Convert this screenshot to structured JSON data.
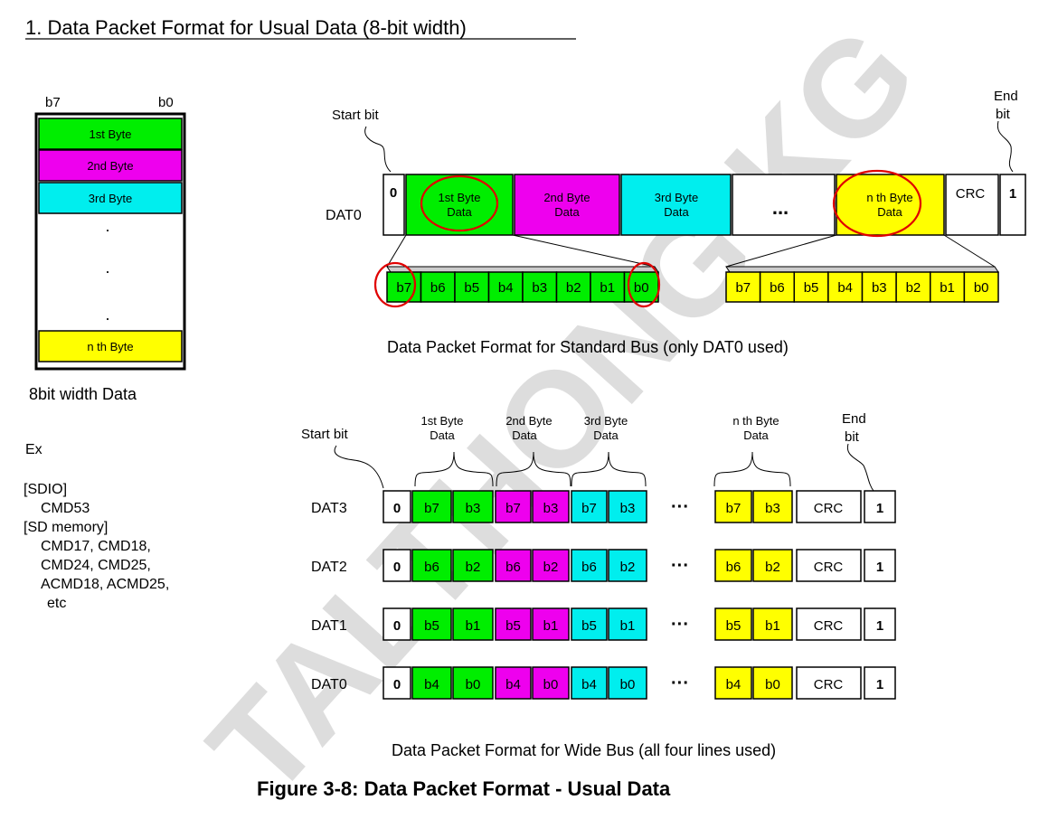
{
  "section_title": "1. Data Packet Format for Usual Data (8-bit width)",
  "watermark": "TALTHONG KG",
  "colors": {
    "green": "#00ee00",
    "magenta": "#ee00ee",
    "cyan": "#00eeee",
    "yellow": "#ffff00",
    "red": "#e00000"
  },
  "byte_stack": {
    "msb_label": "b7",
    "lsb_label": "b0",
    "bytes": [
      "1st Byte",
      "2nd Byte",
      "3rd Byte",
      "n th Byte"
    ],
    "dots": [
      ".",
      ".",
      "."
    ],
    "caption": "8bit width Data"
  },
  "examples": {
    "heading": "Ex",
    "lines": [
      "[SDIO]",
      "CMD53",
      "[SD memory]",
      "CMD17, CMD18,",
      "CMD24, CMD25,",
      "ACMD18, ACMD25,",
      "etc"
    ]
  },
  "standard_bus": {
    "start_label": "Start bit",
    "end_label": [
      "End",
      "bit"
    ],
    "line_label": "DAT0",
    "start_value": "0",
    "end_value": "1",
    "crc_label": "CRC",
    "ellipsis": "...",
    "fields": [
      {
        "label": [
          "1st Byte",
          "Data"
        ]
      },
      {
        "label": [
          "2nd Byte",
          "Data"
        ]
      },
      {
        "label": [
          "3rd Byte",
          "Data"
        ]
      },
      {
        "label": [
          "n th Byte",
          "Data"
        ]
      }
    ],
    "bit_labels": [
      "b7",
      "b6",
      "b5",
      "b4",
      "b3",
      "b2",
      "b1",
      "b0"
    ],
    "caption": "Data Packet Format for Standard Bus (only DAT0 used)"
  },
  "wide_bus": {
    "start_label": "Start bit",
    "end_label": [
      "End",
      "bit"
    ],
    "group_labels": [
      [
        "1st Byte",
        "Data"
      ],
      [
        "2nd Byte",
        "Data"
      ],
      [
        "3rd Byte",
        "Data"
      ],
      [
        "n th Byte",
        "Data"
      ]
    ],
    "crc_label": "CRC",
    "ellipsis": "···",
    "start_value": "0",
    "end_value": "1",
    "lines": [
      {
        "name": "DAT3",
        "bits": [
          "b7",
          "b3"
        ]
      },
      {
        "name": "DAT2",
        "bits": [
          "b6",
          "b2"
        ]
      },
      {
        "name": "DAT1",
        "bits": [
          "b5",
          "b1"
        ]
      },
      {
        "name": "DAT0",
        "bits": [
          "b4",
          "b0"
        ]
      }
    ],
    "caption": "Data Packet Format for Wide Bus (all four lines used)"
  },
  "figure_caption": "Figure 3-8: Data Packet Format - Usual Data"
}
